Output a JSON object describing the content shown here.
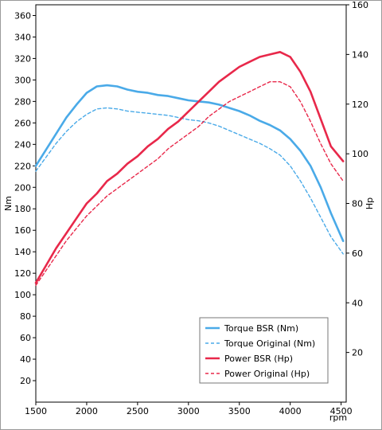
{
  "chart_data": {
    "type": "line",
    "title": "",
    "xlabel": "rpm",
    "ylabel_left": "Nm",
    "ylabel_right": "Hp",
    "xlim": [
      1500,
      4550
    ],
    "ylim_left": [
      0,
      370
    ],
    "ylim_right": [
      0,
      160
    ],
    "x_ticks": [
      1500,
      2000,
      2500,
      3000,
      3500,
      4000,
      4500
    ],
    "y_left_ticks": [
      20,
      40,
      60,
      80,
      100,
      120,
      140,
      160,
      180,
      200,
      220,
      240,
      260,
      280,
      300,
      320,
      340,
      360
    ],
    "y_right_ticks": [
      20,
      40,
      60,
      80,
      100,
      120,
      140,
      160
    ],
    "grid": false,
    "legend": "bottom-right",
    "series": [
      {
        "name": "Torque BSR (Nm)",
        "axis": "left",
        "color": "#4aaae8",
        "style": "solid",
        "x": [
          1500,
          1600,
          1700,
          1800,
          1900,
          2000,
          2100,
          2200,
          2300,
          2400,
          2500,
          2600,
          2700,
          2800,
          2900,
          3000,
          3100,
          3200,
          3300,
          3400,
          3500,
          3600,
          3700,
          3800,
          3900,
          4000,
          4100,
          4200,
          4300,
          4400,
          4520
        ],
        "y": [
          220,
          235,
          250,
          265,
          277,
          288,
          294,
          295,
          294,
          291,
          289,
          288,
          286,
          285,
          283,
          281,
          280,
          279,
          277,
          274,
          271,
          267,
          262,
          258,
          253,
          245,
          234,
          220,
          200,
          176,
          150
        ]
      },
      {
        "name": "Torque Original (Nm)",
        "axis": "left",
        "color": "#4aaae8",
        "style": "dashed",
        "x": [
          1500,
          1600,
          1700,
          1800,
          1900,
          2000,
          2100,
          2200,
          2300,
          2400,
          2500,
          2600,
          2700,
          2800,
          2900,
          3000,
          3100,
          3200,
          3300,
          3400,
          3500,
          3600,
          3700,
          3800,
          3900,
          4000,
          4100,
          4200,
          4300,
          4400,
          4520
        ],
        "y": [
          215,
          228,
          241,
          252,
          261,
          268,
          273,
          274,
          273,
          271,
          270,
          269,
          268,
          267,
          265,
          263,
          262,
          260,
          257,
          253,
          249,
          245,
          241,
          236,
          230,
          220,
          206,
          190,
          172,
          154,
          138
        ]
      },
      {
        "name": "Power BSR (Hp)",
        "axis": "right",
        "color": "#e8284a",
        "style": "solid",
        "x": [
          1500,
          1600,
          1700,
          1800,
          1900,
          2000,
          2100,
          2200,
          2300,
          2400,
          2500,
          2600,
          2700,
          2800,
          2900,
          3000,
          3100,
          3200,
          3300,
          3400,
          3500,
          3600,
          3700,
          3800,
          3900,
          4000,
          4100,
          4200,
          4300,
          4400,
          4520
        ],
        "y": [
          48,
          55,
          62,
          68,
          74,
          80,
          84,
          89,
          92,
          96,
          99,
          103,
          106,
          110,
          113,
          117,
          121,
          125,
          129,
          132,
          135,
          137,
          139,
          140,
          141,
          139,
          133,
          125,
          114,
          103,
          97
        ]
      },
      {
        "name": "Power Original (Hp)",
        "axis": "right",
        "color": "#e8284a",
        "style": "dashed",
        "x": [
          1500,
          1600,
          1700,
          1800,
          1900,
          2000,
          2100,
          2200,
          2300,
          2400,
          2500,
          2600,
          2700,
          2800,
          2900,
          3000,
          3100,
          3200,
          3300,
          3400,
          3500,
          3600,
          3700,
          3800,
          3900,
          4000,
          4100,
          4200,
          4300,
          4400,
          4520
        ],
        "y": [
          47,
          53,
          59,
          65,
          70,
          75,
          79,
          83,
          86,
          89,
          92,
          95,
          98,
          102,
          105,
          108,
          111,
          115,
          118,
          121,
          123,
          125,
          127,
          129,
          129,
          127,
          121,
          113,
          104,
          96,
          89
        ]
      }
    ]
  }
}
